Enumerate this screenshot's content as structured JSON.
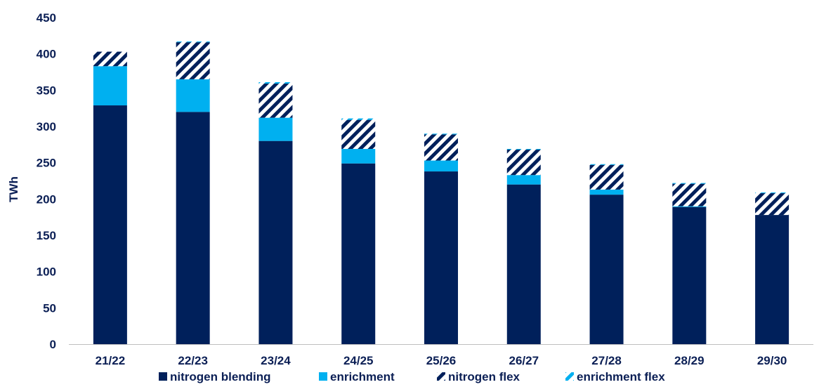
{
  "chart_data": {
    "type": "bar",
    "stacked": true,
    "title": "",
    "xlabel": "",
    "ylabel": "TWh",
    "ylim": [
      0,
      450
    ],
    "yticks": [
      "0",
      "50",
      "100",
      "150",
      "200",
      "250",
      "300",
      "350",
      "400",
      "450"
    ],
    "categories": [
      "21/22",
      "22/23",
      "23/24",
      "24/25",
      "25/26",
      "26/27",
      "27/28",
      "28/29",
      "29/30"
    ],
    "grid": false,
    "legend_position": "bottom",
    "series": [
      {
        "name": "nitrogen blending",
        "color": "#00205b",
        "pattern": "solid",
        "values": [
          329,
          320,
          280,
          249,
          238,
          220,
          206,
          189,
          178
        ]
      },
      {
        "name": "enrichment",
        "color": "#00b0f0",
        "pattern": "solid",
        "values": [
          54,
          45,
          32,
          20,
          15,
          13,
          7,
          1,
          0
        ]
      },
      {
        "name": "nitrogen flex",
        "color": "#00205b",
        "pattern": "hatched",
        "values": [
          20,
          51,
          47,
          40,
          36,
          35,
          34,
          31,
          30
        ]
      },
      {
        "name": "enrichment flex",
        "color": "#00b0f0",
        "pattern": "hatched",
        "values": [
          0,
          1,
          2,
          2,
          1,
          1,
          1,
          1,
          1
        ]
      }
    ]
  }
}
